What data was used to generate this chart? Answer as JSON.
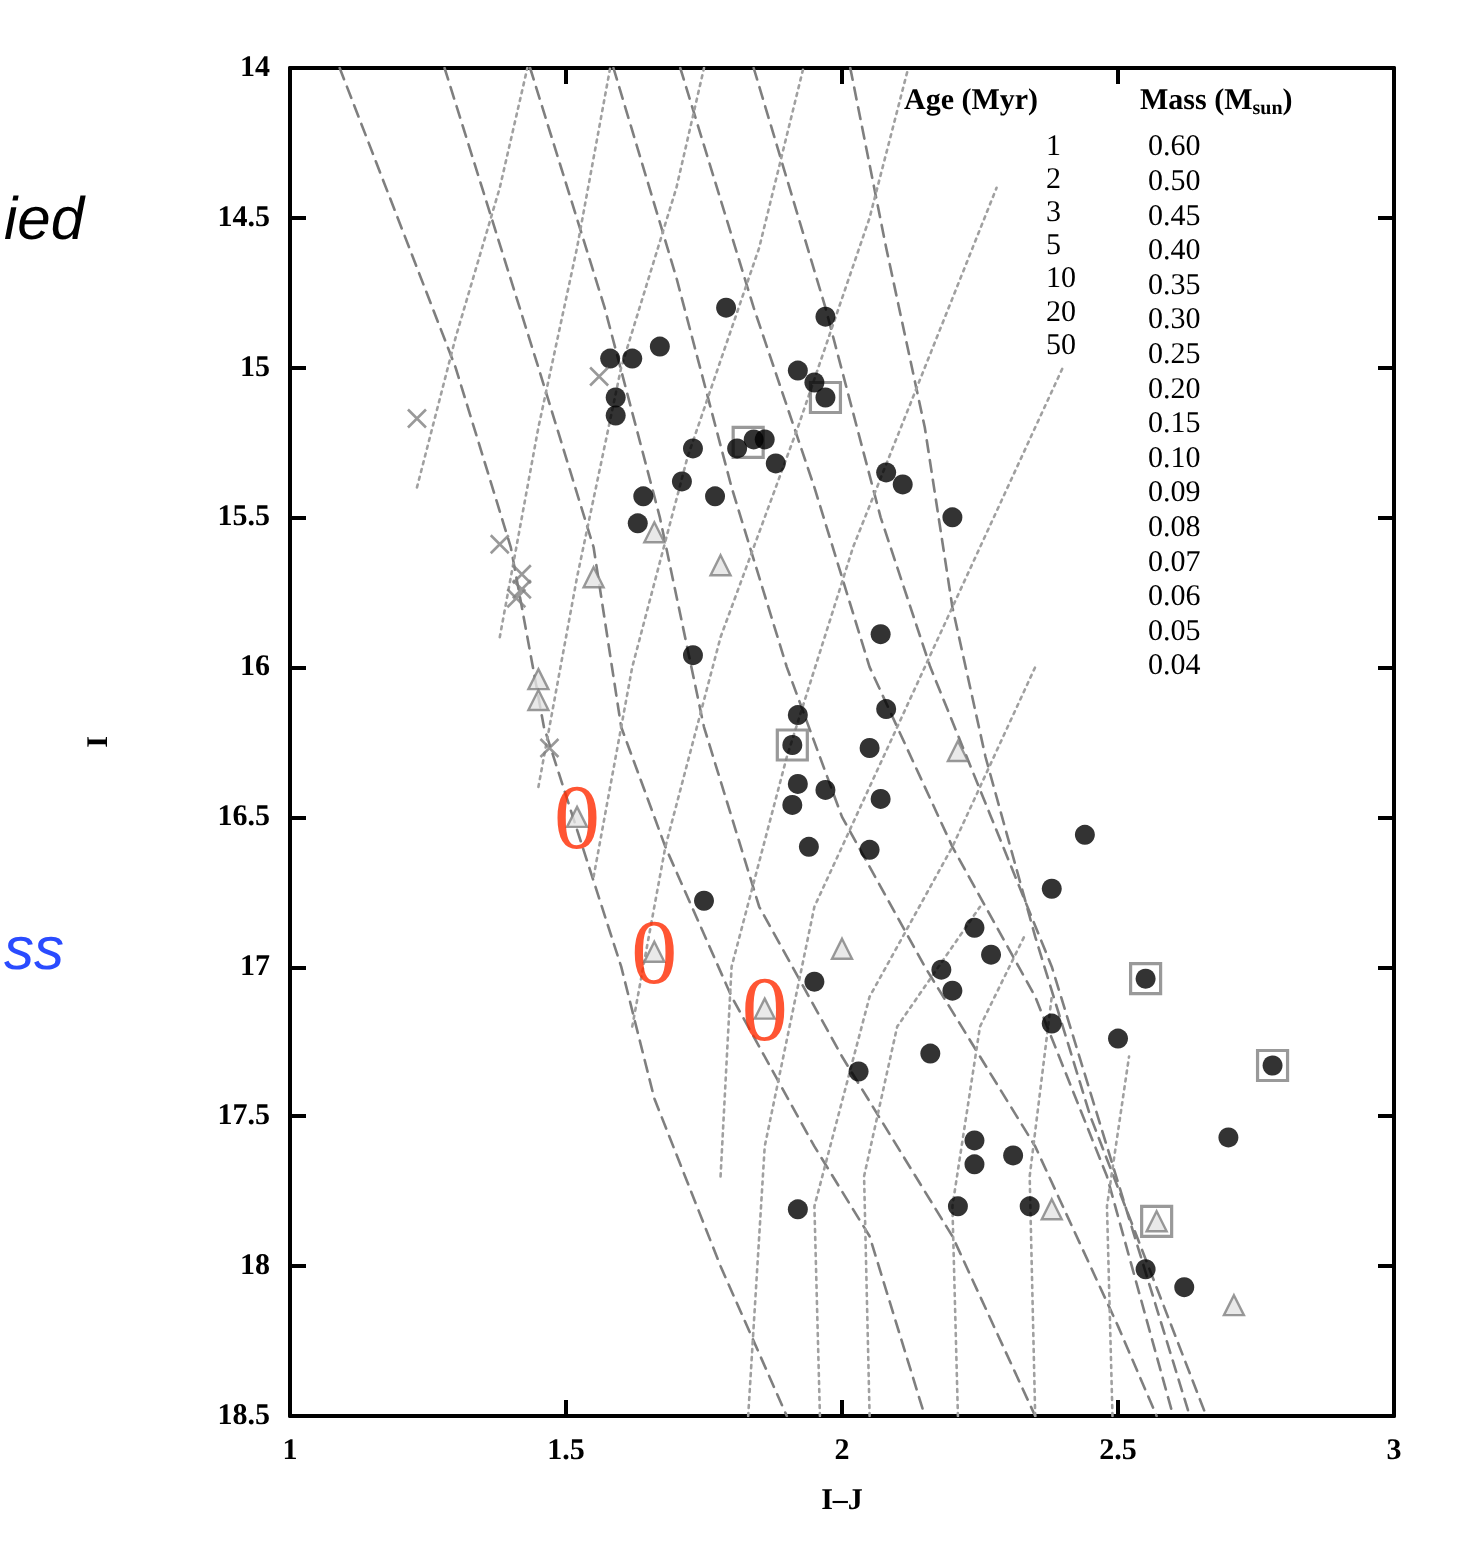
{
  "chart_data": {
    "type": "scatter",
    "xlabel": "I–J",
    "ylabel": "I",
    "xlim": [
      1,
      3
    ],
    "xticks": [
      1,
      1.5,
      2,
      2.5,
      3
    ],
    "ylim": [
      18.5,
      14
    ],
    "yticks": [
      14,
      14.5,
      15,
      15.5,
      16,
      16.5,
      17,
      17.5,
      18,
      18.5
    ],
    "grid": false,
    "annotations": [
      "Age (Myr)\n1\n2\n3\n5\n10\n20\n50",
      "Mass (M$_{sun}$)\n0.60\n0.50\n0.45\n0.40\n0.35\n0.30\n0.25\n0.20\n0.15\n0.10\n0.09\n0.08\n0.07\n0.06\n0.05\n0.04",
      "ied",
      "ss",
      {
        "text": "0",
        "x": 1.52,
        "y": 16.5
      },
      {
        "text": "0",
        "x": 1.66,
        "y": 16.95
      },
      {
        "text": "0",
        "x": 1.86,
        "y": 17.14
      }
    ],
    "series": [
      {
        "type": "line",
        "line_style": "dashed",
        "marker": "none",
        "color": "#7f7f7f",
        "x": [
          1.09,
          1.3,
          1.4,
          1.46,
          1.53,
          1.6,
          1.66,
          1.78,
          1.9
        ],
        "values": [
          14,
          15,
          15.6,
          16.2,
          16.6,
          17,
          17.44,
          18,
          18.5
        ]
      },
      {
        "type": "line",
        "line_style": "dashed",
        "marker": "none",
        "color": "#7f7f7f",
        "x": [
          1.28,
          1.45,
          1.55,
          1.6,
          1.68,
          1.8,
          1.95,
          2.05,
          2.15
        ],
        "values": [
          14,
          15,
          15.6,
          16.2,
          16.6,
          17.1,
          17.6,
          17.9,
          18.5
        ]
      },
      {
        "type": "line",
        "line_style": "dashed",
        "marker": "none",
        "color": "#7f7f7f",
        "x": [
          1.435,
          1.57,
          1.67,
          1.75,
          1.85,
          2,
          2.2,
          2.35
        ],
        "values": [
          14,
          14.8,
          15.5,
          16.2,
          16.8,
          17.3,
          17.9,
          18.5
        ]
      },
      {
        "type": "line",
        "line_style": "dashed",
        "marker": "none",
        "color": "#7f7f7f",
        "x": [
          1.586,
          1.7,
          1.8,
          1.9,
          2,
          2.15,
          2.35,
          2.5,
          2.57
        ],
        "values": [
          14,
          14.7,
          15.4,
          16,
          16.5,
          17,
          17.6,
          18.2,
          18.5
        ]
      },
      {
        "type": "line",
        "line_style": "dashed",
        "marker": "none",
        "color": "#7f7f7f",
        "x": [
          1.707,
          1.84,
          1.95,
          2.05,
          2.2,
          2.35,
          2.48,
          2.6
        ],
        "values": [
          14,
          14.8,
          15.4,
          16,
          16.6,
          17.1,
          17.7,
          18.5
        ]
      },
      {
        "type": "line",
        "line_style": "dashed",
        "marker": "none",
        "color": "#7f7f7f",
        "x": [
          1.84,
          1.97,
          2.07,
          2.16,
          2.27,
          2.38,
          2.48,
          2.63
        ],
        "values": [
          14,
          14.8,
          15.5,
          16,
          16.5,
          17,
          17.6,
          18.5
        ]
      },
      {
        "type": "line",
        "line_style": "dashed",
        "marker": "none",
        "color": "#7f7f7f",
        "x": [
          2.015,
          2.08,
          2.15,
          2.2,
          2.26,
          2.35,
          2.45,
          2.66
        ],
        "values": [
          14,
          14.6,
          15.2,
          15.8,
          16.3,
          16.9,
          17.5,
          18.5
        ]
      },
      {
        "type": "line",
        "line_style": "dotted",
        "marker": "none",
        "color": "#a0a0a0",
        "x": [
          1.23,
          1.3,
          1.38,
          1.43
        ],
        "values": [
          15.4,
          14.9,
          14.4,
          14
        ]
      },
      {
        "type": "line",
        "line_style": "dotted",
        "marker": "none",
        "color": "#a0a0a0",
        "x": [
          1.38,
          1.45,
          1.52,
          1.58
        ],
        "values": [
          15.9,
          15.2,
          14.6,
          14
        ]
      },
      {
        "type": "line",
        "line_style": "dotted",
        "marker": "none",
        "color": "#a0a0a0",
        "x": [
          1.45,
          1.52,
          1.6,
          1.7,
          1.75
        ],
        "values": [
          16.4,
          15.7,
          15,
          14.4,
          14
        ]
      },
      {
        "type": "line",
        "line_style": "dotted",
        "marker": "none",
        "color": "#a0a0a0",
        "x": [
          1.55,
          1.62,
          1.72,
          1.85,
          1.93
        ],
        "values": [
          16.7,
          16,
          15.3,
          14.6,
          14
        ]
      },
      {
        "type": "line",
        "line_style": "dotted",
        "marker": "none",
        "color": "#a0a0a0",
        "x": [
          1.62,
          1.68,
          1.78,
          1.92,
          2.05,
          2.12
        ],
        "values": [
          17.2,
          16.6,
          15.9,
          15.2,
          14.5,
          14
        ]
      },
      {
        "type": "line",
        "line_style": "dotted",
        "marker": "none",
        "color": "#a0a0a0",
        "x": [
          1.78,
          1.8,
          1.9,
          2.02,
          2.15,
          2.28
        ],
        "values": [
          17.7,
          17,
          16.3,
          15.6,
          15,
          14.4
        ]
      },
      {
        "type": "line",
        "line_style": "dotted",
        "marker": "none",
        "color": "#a0a0a0",
        "x": [
          1.83,
          1.86,
          1.95,
          2.1,
          2.25,
          2.4
        ],
        "values": [
          18.5,
          17.6,
          16.8,
          16.2,
          15.6,
          15
        ]
      },
      {
        "type": "line",
        "line_style": "dotted",
        "marker": "none",
        "color": "#a0a0a0",
        "x": [
          1.96,
          1.95,
          2.05,
          2.2,
          2.35
        ],
        "values": [
          18.5,
          17.8,
          17.1,
          16.6,
          16
        ]
      },
      {
        "type": "line",
        "line_style": "dotted",
        "marker": "none",
        "color": "#a0a0a0",
        "x": [
          2.05,
          2.04,
          2.1,
          2.25
        ],
        "values": [
          18.5,
          17.7,
          17.2,
          16.8
        ]
      },
      {
        "type": "line",
        "line_style": "dotted",
        "marker": "none",
        "color": "#a0a0a0",
        "x": [
          2.21,
          2.2,
          2.25,
          2.33
        ],
        "values": [
          18.5,
          17.8,
          17.2,
          16.9
        ]
      },
      {
        "type": "line",
        "line_style": "dotted",
        "marker": "none",
        "color": "#a0a0a0",
        "x": [
          2.35,
          2.34,
          2.38
        ],
        "values": [
          18.5,
          17.7,
          17.1
        ]
      },
      {
        "type": "line",
        "line_style": "dotted",
        "marker": "none",
        "color": "#a0a0a0",
        "x": [
          2.49,
          2.48,
          2.52
        ],
        "values": [
          18.5,
          17.8,
          17.3
        ]
      },
      {
        "marker": "square",
        "color": "#808080",
        "x": [
          1.97,
          1.83,
          1.91,
          2.55,
          2.78,
          2.57
        ],
        "values": [
          15.1,
          15.25,
          16.26,
          17.04,
          17.33,
          17.85
        ]
      },
      {
        "marker": "circle",
        "color": "#000000",
        "x": [
          1.79,
          1.97,
          1.58,
          1.62,
          1.67,
          1.92,
          1.95,
          1.97,
          1.59,
          1.59,
          1.81,
          1.84,
          1.86,
          1.73,
          1.88,
          1.71,
          1.77,
          1.64,
          1.63,
          1.73,
          1.92,
          2.08,
          2.11,
          2.2,
          2.07,
          2.08,
          1.91,
          1.92,
          1.97,
          1.91,
          1.94,
          1.75,
          1.95,
          2.03,
          1.92,
          2.05,
          2.07,
          2.05,
          2.44,
          2.38,
          2.24,
          2.27,
          2.18,
          2.2,
          2.55,
          2.38,
          2.5,
          2.78,
          2.16,
          2.7,
          2.24,
          2.24,
          2.31,
          2.21,
          2.34,
          2.55,
          2.62
        ],
        "values": [
          14.8,
          14.83,
          14.97,
          14.97,
          14.93,
          15.01,
          15.05,
          15.1,
          15.1,
          15.16,
          15.27,
          15.24,
          15.24,
          15.27,
          15.32,
          15.38,
          15.43,
          15.43,
          15.52,
          15.96,
          16.16,
          15.35,
          15.39,
          15.5,
          15.89,
          16.14,
          16.26,
          16.39,
          16.41,
          16.46,
          16.6,
          16.78,
          17.05,
          17.35,
          17.81,
          16.27,
          16.44,
          16.61,
          16.56,
          16.74,
          16.87,
          16.96,
          17.01,
          17.08,
          17.04,
          17.19,
          17.24,
          17.33,
          17.29,
          17.57,
          17.58,
          17.66,
          17.63,
          17.8,
          17.8,
          18.01,
          18.07
        ]
      },
      {
        "marker": "triangle",
        "color": "#808080",
        "x": [
          1.52,
          1.66,
          1.86,
          2,
          2.21,
          2.38,
          2.57,
          2.71,
          1.66,
          1.55,
          1.78,
          1.45,
          1.45
        ],
        "values": [
          16.5,
          16.95,
          17.14,
          16.94,
          16.28,
          17.81,
          17.85,
          18.13,
          15.55,
          15.7,
          15.66,
          16.04,
          16.11
        ]
      },
      {
        "marker": "cross",
        "color": "#808080",
        "x": [
          1.47,
          1.23,
          1.56,
          1.38,
          1.42,
          1.42,
          1.41
        ],
        "values": [
          16.27,
          15.17,
          15.03,
          15.59,
          15.69,
          15.74,
          15.77
        ]
      }
    ]
  }
}
